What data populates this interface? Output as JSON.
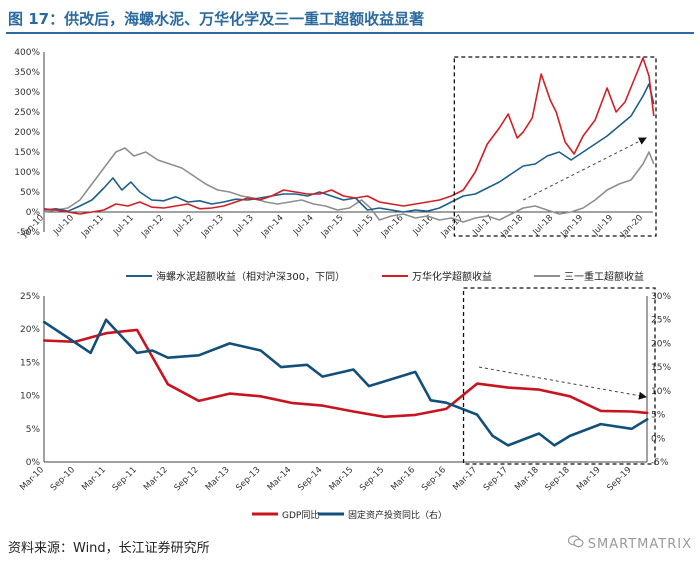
{
  "figure": {
    "title": "图 17：供改后，海螺水泥、万华化学及三一重工超额收益显著",
    "source": "资料来源：Wind，长江证券研究所",
    "watermark": "SMARTMATRIX",
    "watermark_icon": "wechat-icon",
    "accent_color": "#2b6a9e"
  },
  "chart_data": [
    {
      "type": "line",
      "title": "",
      "xlabel": "",
      "ylabel": "",
      "ylim": [
        -50,
        400
      ],
      "yticks": [
        "-50%",
        "0%",
        "50%",
        "100%",
        "150%",
        "200%",
        "250%",
        "300%",
        "350%",
        "400%"
      ],
      "ytick_values": [
        -50,
        0,
        50,
        100,
        150,
        200,
        250,
        300,
        350,
        400
      ],
      "x_range": [
        "2010-01",
        "2020-03"
      ],
      "xtick_labels": [
        "Jan-10",
        "Jul-10",
        "Jan-11",
        "Jul-11",
        "Jan-12",
        "Jul-12",
        "Jan-13",
        "Jul-13",
        "Jan-14",
        "Jul-14",
        "Jan-15",
        "Jul-15",
        "Jan-16",
        "Jul-16",
        "Jan-17",
        "Jul-17",
        "Jan-18",
        "Jul-18",
        "Jan-19",
        "Jul-19",
        "Jan-20"
      ],
      "grid": false,
      "legend_position": "bottom",
      "annotation": "dashed box from Nov-16 to end of series; dashed trend arrow rising from Jan-18 to Jan-20",
      "series": [
        {
          "name": "海螺水泥超额收益（相对沪深300，下同）",
          "color": "#1f5f8b",
          "x": [
            2010.0,
            2010.2,
            2010.4,
            2010.6,
            2010.8,
            2011.0,
            2011.15,
            2011.3,
            2011.45,
            2011.6,
            2011.8,
            2012.0,
            2012.2,
            2012.4,
            2012.6,
            2012.8,
            2013.0,
            2013.2,
            2013.4,
            2013.6,
            2013.8,
            2014.0,
            2014.2,
            2014.4,
            2014.6,
            2014.8,
            2015.0,
            2015.2,
            2015.4,
            2015.6,
            2015.8,
            2016.0,
            2016.2,
            2016.4,
            2016.6,
            2016.8,
            2017.0,
            2017.2,
            2017.4,
            2017.6,
            2017.8,
            2018.0,
            2018.2,
            2018.4,
            2018.6,
            2018.8,
            2019.0,
            2019.2,
            2019.4,
            2019.6,
            2019.8,
            2020.0,
            2020.1,
            2020.18
          ],
          "values": [
            5,
            8,
            2,
            15,
            30,
            60,
            85,
            55,
            75,
            50,
            30,
            28,
            38,
            25,
            28,
            20,
            25,
            32,
            30,
            35,
            40,
            45,
            45,
            40,
            50,
            40,
            30,
            35,
            5,
            10,
            5,
            0,
            5,
            2,
            10,
            25,
            40,
            45,
            60,
            75,
            95,
            115,
            120,
            140,
            150,
            130,
            150,
            170,
            190,
            215,
            240,
            290,
            320,
            270
          ]
        },
        {
          "name": "万华化学超额收益",
          "color": "#d21f26",
          "x": [
            2010.0,
            2010.2,
            2010.4,
            2010.6,
            2010.8,
            2011.0,
            2011.2,
            2011.4,
            2011.6,
            2011.8,
            2012.0,
            2012.2,
            2012.4,
            2012.6,
            2012.8,
            2013.0,
            2013.2,
            2013.4,
            2013.6,
            2013.8,
            2014.0,
            2014.2,
            2014.4,
            2014.6,
            2014.8,
            2015.0,
            2015.2,
            2015.4,
            2015.6,
            2015.8,
            2016.0,
            2016.2,
            2016.4,
            2016.6,
            2016.8,
            2017.0,
            2017.2,
            2017.4,
            2017.6,
            2017.75,
            2017.9,
            2018.0,
            2018.15,
            2018.3,
            2018.45,
            2018.55,
            2018.7,
            2018.85,
            2019.0,
            2019.2,
            2019.4,
            2019.55,
            2019.7,
            2019.85,
            2020.0,
            2020.1,
            2020.18
          ],
          "values": [
            8,
            5,
            0,
            -5,
            0,
            5,
            20,
            15,
            25,
            12,
            10,
            15,
            20,
            8,
            10,
            15,
            25,
            35,
            30,
            40,
            55,
            50,
            45,
            45,
            55,
            40,
            35,
            40,
            25,
            20,
            15,
            20,
            25,
            30,
            40,
            55,
            100,
            170,
            210,
            245,
            185,
            200,
            235,
            345,
            280,
            250,
            175,
            145,
            190,
            230,
            310,
            250,
            275,
            330,
            385,
            340,
            240
          ]
        },
        {
          "name": "三一重工超额收益",
          "color": "#8f8f8f",
          "x": [
            2010.0,
            2010.2,
            2010.4,
            2010.6,
            2010.8,
            2011.0,
            2011.2,
            2011.35,
            2011.5,
            2011.7,
            2011.9,
            2012.1,
            2012.3,
            2012.5,
            2012.7,
            2012.9,
            2013.1,
            2013.3,
            2013.5,
            2013.7,
            2013.9,
            2014.1,
            2014.3,
            2014.5,
            2014.7,
            2014.9,
            2015.1,
            2015.3,
            2015.45,
            2015.6,
            2015.8,
            2016.0,
            2016.2,
            2016.4,
            2016.6,
            2016.8,
            2017.0,
            2017.2,
            2017.4,
            2017.6,
            2017.8,
            2018.0,
            2018.2,
            2018.4,
            2018.6,
            2018.8,
            2019.0,
            2019.2,
            2019.4,
            2019.6,
            2019.8,
            2020.0,
            2020.1,
            2020.18
          ],
          "values": [
            0,
            5,
            10,
            30,
            70,
            110,
            150,
            160,
            140,
            150,
            130,
            120,
            110,
            90,
            70,
            55,
            50,
            40,
            35,
            25,
            20,
            25,
            30,
            20,
            15,
            5,
            10,
            30,
            10,
            -20,
            -10,
            -5,
            -15,
            -10,
            -20,
            -15,
            -25,
            -15,
            -10,
            -20,
            -5,
            10,
            15,
            5,
            -5,
            0,
            10,
            30,
            55,
            70,
            80,
            120,
            150,
            120
          ]
        }
      ]
    },
    {
      "type": "line",
      "title": "",
      "xlabel": "",
      "ylabel": "",
      "ylim": [
        0,
        25
      ],
      "y2lim": [
        -5,
        30
      ],
      "yticks": [
        "0%",
        "5%",
        "10%",
        "15%",
        "20%",
        "25%"
      ],
      "ytick_values": [
        0,
        5,
        10,
        15,
        20,
        25
      ],
      "y2ticks": [
        "-5%",
        "0%",
        "5%",
        "10%",
        "15%",
        "20%",
        "25%",
        "30%"
      ],
      "y2tick_values": [
        -5,
        0,
        5,
        10,
        15,
        20,
        25,
        30
      ],
      "x_range": [
        "2010-03",
        "2019-12"
      ],
      "xtick_labels": [
        "Mar-10",
        "Sep-10",
        "Mar-11",
        "Sep-11",
        "Mar-12",
        "Sep-12",
        "Mar-13",
        "Sep-13",
        "Mar-14",
        "Sep-14",
        "Mar-15",
        "Sep-15",
        "Mar-16",
        "Sep-16",
        "Mar-17",
        "Sep-17",
        "Mar-18",
        "Sep-18",
        "Mar-19",
        "Sep-19"
      ],
      "grid": false,
      "legend_position": "bottom",
      "annotation": "dashed box from Mar-17 to end of series; dashed trend arrow falling from Mar-17 to Dec-19",
      "series": [
        {
          "name": "GDP同比",
          "color": "#c8141e",
          "axis": "left",
          "x": [
            2010.17,
            2010.67,
            2011.17,
            2011.67,
            2012.17,
            2012.67,
            2013.17,
            2013.67,
            2014.17,
            2014.67,
            2015.17,
            2015.67,
            2016.17,
            2016.67,
            2017.17,
            2017.67,
            2018.17,
            2018.67,
            2019.17,
            2019.67,
            2019.92
          ],
          "values": [
            18.3,
            18.1,
            19.4,
            19.9,
            11.7,
            9.2,
            10.3,
            9.9,
            8.9,
            8.5,
            7.6,
            6.8,
            7.1,
            8.0,
            11.8,
            11.2,
            10.9,
            9.9,
            7.7,
            7.6,
            7.4
          ]
        },
        {
          "name": "固定资产投资同比（右）",
          "color": "#12507a",
          "axis": "right",
          "x": [
            2010.17,
            2010.67,
            2010.92,
            2011.17,
            2011.67,
            2011.92,
            2012.17,
            2012.67,
            2013.17,
            2013.67,
            2014.0,
            2014.42,
            2014.67,
            2015.17,
            2015.42,
            2015.67,
            2016.17,
            2016.42,
            2016.67,
            2017.17,
            2017.42,
            2017.67,
            2018.17,
            2018.42,
            2018.67,
            2019.17,
            2019.67,
            2019.92
          ],
          "values": [
            24.5,
            20.2,
            18.0,
            25.0,
            18.0,
            18.5,
            17.0,
            17.5,
            20.0,
            18.5,
            15.0,
            15.5,
            13.0,
            14.5,
            11.0,
            12.0,
            14.0,
            8.0,
            7.5,
            5.0,
            0.5,
            -1.5,
            1.0,
            -1.5,
            0.5,
            3.0,
            2.0,
            4.0
          ]
        }
      ]
    }
  ]
}
